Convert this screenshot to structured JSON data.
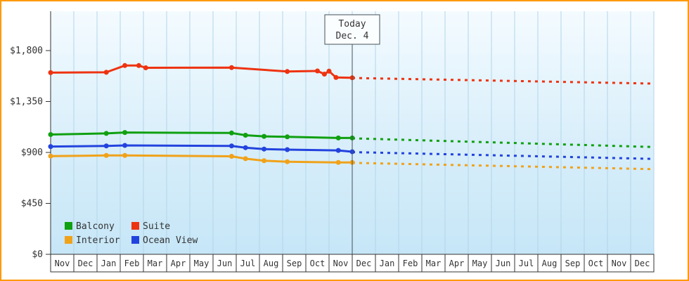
{
  "frame": {
    "border_color": "#ff9900"
  },
  "today": {
    "line1": "Today",
    "line2": "Dec. 4"
  },
  "legend": {
    "items": [
      {
        "label": "Balcony",
        "color": "#10a010"
      },
      {
        "label": "Suite",
        "color": "#ee3311"
      },
      {
        "label": "Interior",
        "color": "#f0a21a"
      },
      {
        "label": "Ocean View",
        "color": "#2343de"
      }
    ]
  },
  "chart_data": {
    "type": "line",
    "title": "",
    "x_months": [
      "Nov",
      "Dec",
      "Jan",
      "Feb",
      "Mar",
      "Apr",
      "May",
      "Jun",
      "Jul",
      "Aug",
      "Sep",
      "Oct",
      "Nov",
      "Dec",
      "Jan",
      "Feb",
      "Mar",
      "Apr",
      "May",
      "Jun",
      "Jul",
      "Aug",
      "Sep",
      "Oct",
      "Nov",
      "Dec"
    ],
    "ylim": [
      0,
      1800
    ],
    "y_ticks": [
      0,
      450,
      900,
      1350,
      1800
    ],
    "y_tick_labels": [
      "$0",
      "$450",
      "$900",
      "$1,350",
      "$1,800"
    ],
    "today_month_index": 13,
    "grid": "vertical-months",
    "legend_position": "bottom-left",
    "series": [
      {
        "name": "Suite",
        "color": "#ee3311",
        "history": [
          [
            0,
            1605
          ],
          [
            2.4,
            1608
          ],
          [
            3.2,
            1668
          ],
          [
            3.8,
            1668
          ],
          [
            4.1,
            1648
          ],
          [
            7.8,
            1650
          ],
          [
            10.2,
            1615
          ],
          [
            11.5,
            1620
          ],
          [
            11.8,
            1592
          ],
          [
            12.0,
            1618
          ],
          [
            12.3,
            1562
          ],
          [
            13,
            1560
          ]
        ],
        "forecast": [
          [
            13,
            1558
          ],
          [
            26,
            1508
          ]
        ]
      },
      {
        "name": "Balcony",
        "color": "#10a010",
        "history": [
          [
            0,
            1058
          ],
          [
            2.4,
            1068
          ],
          [
            3.2,
            1076
          ],
          [
            7.8,
            1072
          ],
          [
            8.4,
            1052
          ],
          [
            9.2,
            1042
          ],
          [
            10.2,
            1038
          ],
          [
            12.4,
            1028
          ],
          [
            13,
            1028
          ]
        ],
        "forecast": [
          [
            13,
            1025
          ],
          [
            26,
            948
          ]
        ]
      },
      {
        "name": "Ocean View",
        "color": "#2343de",
        "history": [
          [
            0,
            952
          ],
          [
            2.4,
            958
          ],
          [
            3.2,
            962
          ],
          [
            7.8,
            958
          ],
          [
            8.4,
            942
          ],
          [
            9.2,
            930
          ],
          [
            10.2,
            925
          ],
          [
            12.4,
            918
          ],
          [
            13,
            906
          ]
        ],
        "forecast": [
          [
            13,
            903
          ],
          [
            26,
            843
          ]
        ]
      },
      {
        "name": "Interior",
        "color": "#f0a21a",
        "history": [
          [
            0,
            868
          ],
          [
            2.4,
            873
          ],
          [
            3.2,
            873
          ],
          [
            7.8,
            866
          ],
          [
            8.4,
            845
          ],
          [
            9.2,
            827
          ],
          [
            10.2,
            818
          ],
          [
            12.4,
            812
          ],
          [
            13,
            812
          ]
        ],
        "forecast": [
          [
            13,
            808
          ],
          [
            26,
            752
          ]
        ]
      }
    ]
  }
}
